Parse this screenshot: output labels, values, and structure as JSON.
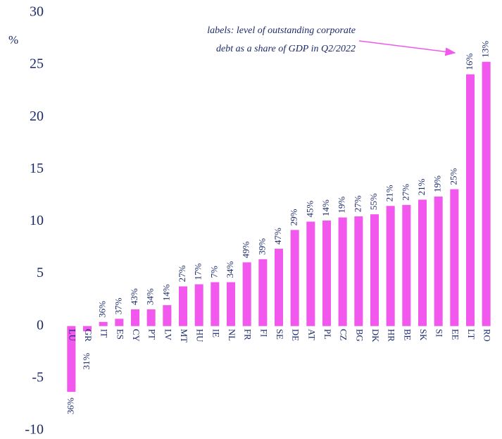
{
  "chart_data": {
    "type": "bar",
    "y_axis_label": "%",
    "annotation": [
      "labels: level of outstanding corporate",
      "debt as a share of GDP in Q2/2022"
    ],
    "categories": [
      "LU",
      "GR",
      "IT",
      "ES",
      "CY",
      "PT",
      "LV",
      "MT",
      "HU",
      "IE",
      "NL",
      "FR",
      "FI",
      "SE",
      "DE",
      "AT",
      "PL",
      "CZ",
      "BG",
      "DK",
      "HR",
      "BE",
      "SK",
      "SI",
      "EE",
      "LT",
      "RO"
    ],
    "values": [
      -6.3,
      -0.5,
      0.4,
      0.7,
      1.6,
      1.6,
      2.0,
      3.8,
      4.0,
      4.2,
      4.2,
      6.1,
      6.4,
      7.4,
      9.2,
      10.0,
      10.1,
      10.4,
      10.5,
      10.7,
      11.5,
      11.6,
      12.1,
      12.4,
      13.1,
      24.1,
      25.3
    ],
    "bar_labels": [
      "36%",
      "31%",
      "36%",
      "37%",
      "43%",
      "34%",
      "14%",
      "27%",
      "17%",
      "7%",
      "34%",
      "49%",
      "39%",
      "47%",
      "29%",
      "45%",
      "14%",
      "19%",
      "27%",
      "55%",
      "21%",
      "27%",
      "21%",
      "19%",
      "25%",
      "16%",
      "13%"
    ],
    "color": "#f257ee",
    "ylim": [
      -10,
      30
    ],
    "yticks": [
      -10,
      -5,
      0,
      5,
      10,
      15,
      20,
      25,
      30
    ],
    "grid": false
  }
}
